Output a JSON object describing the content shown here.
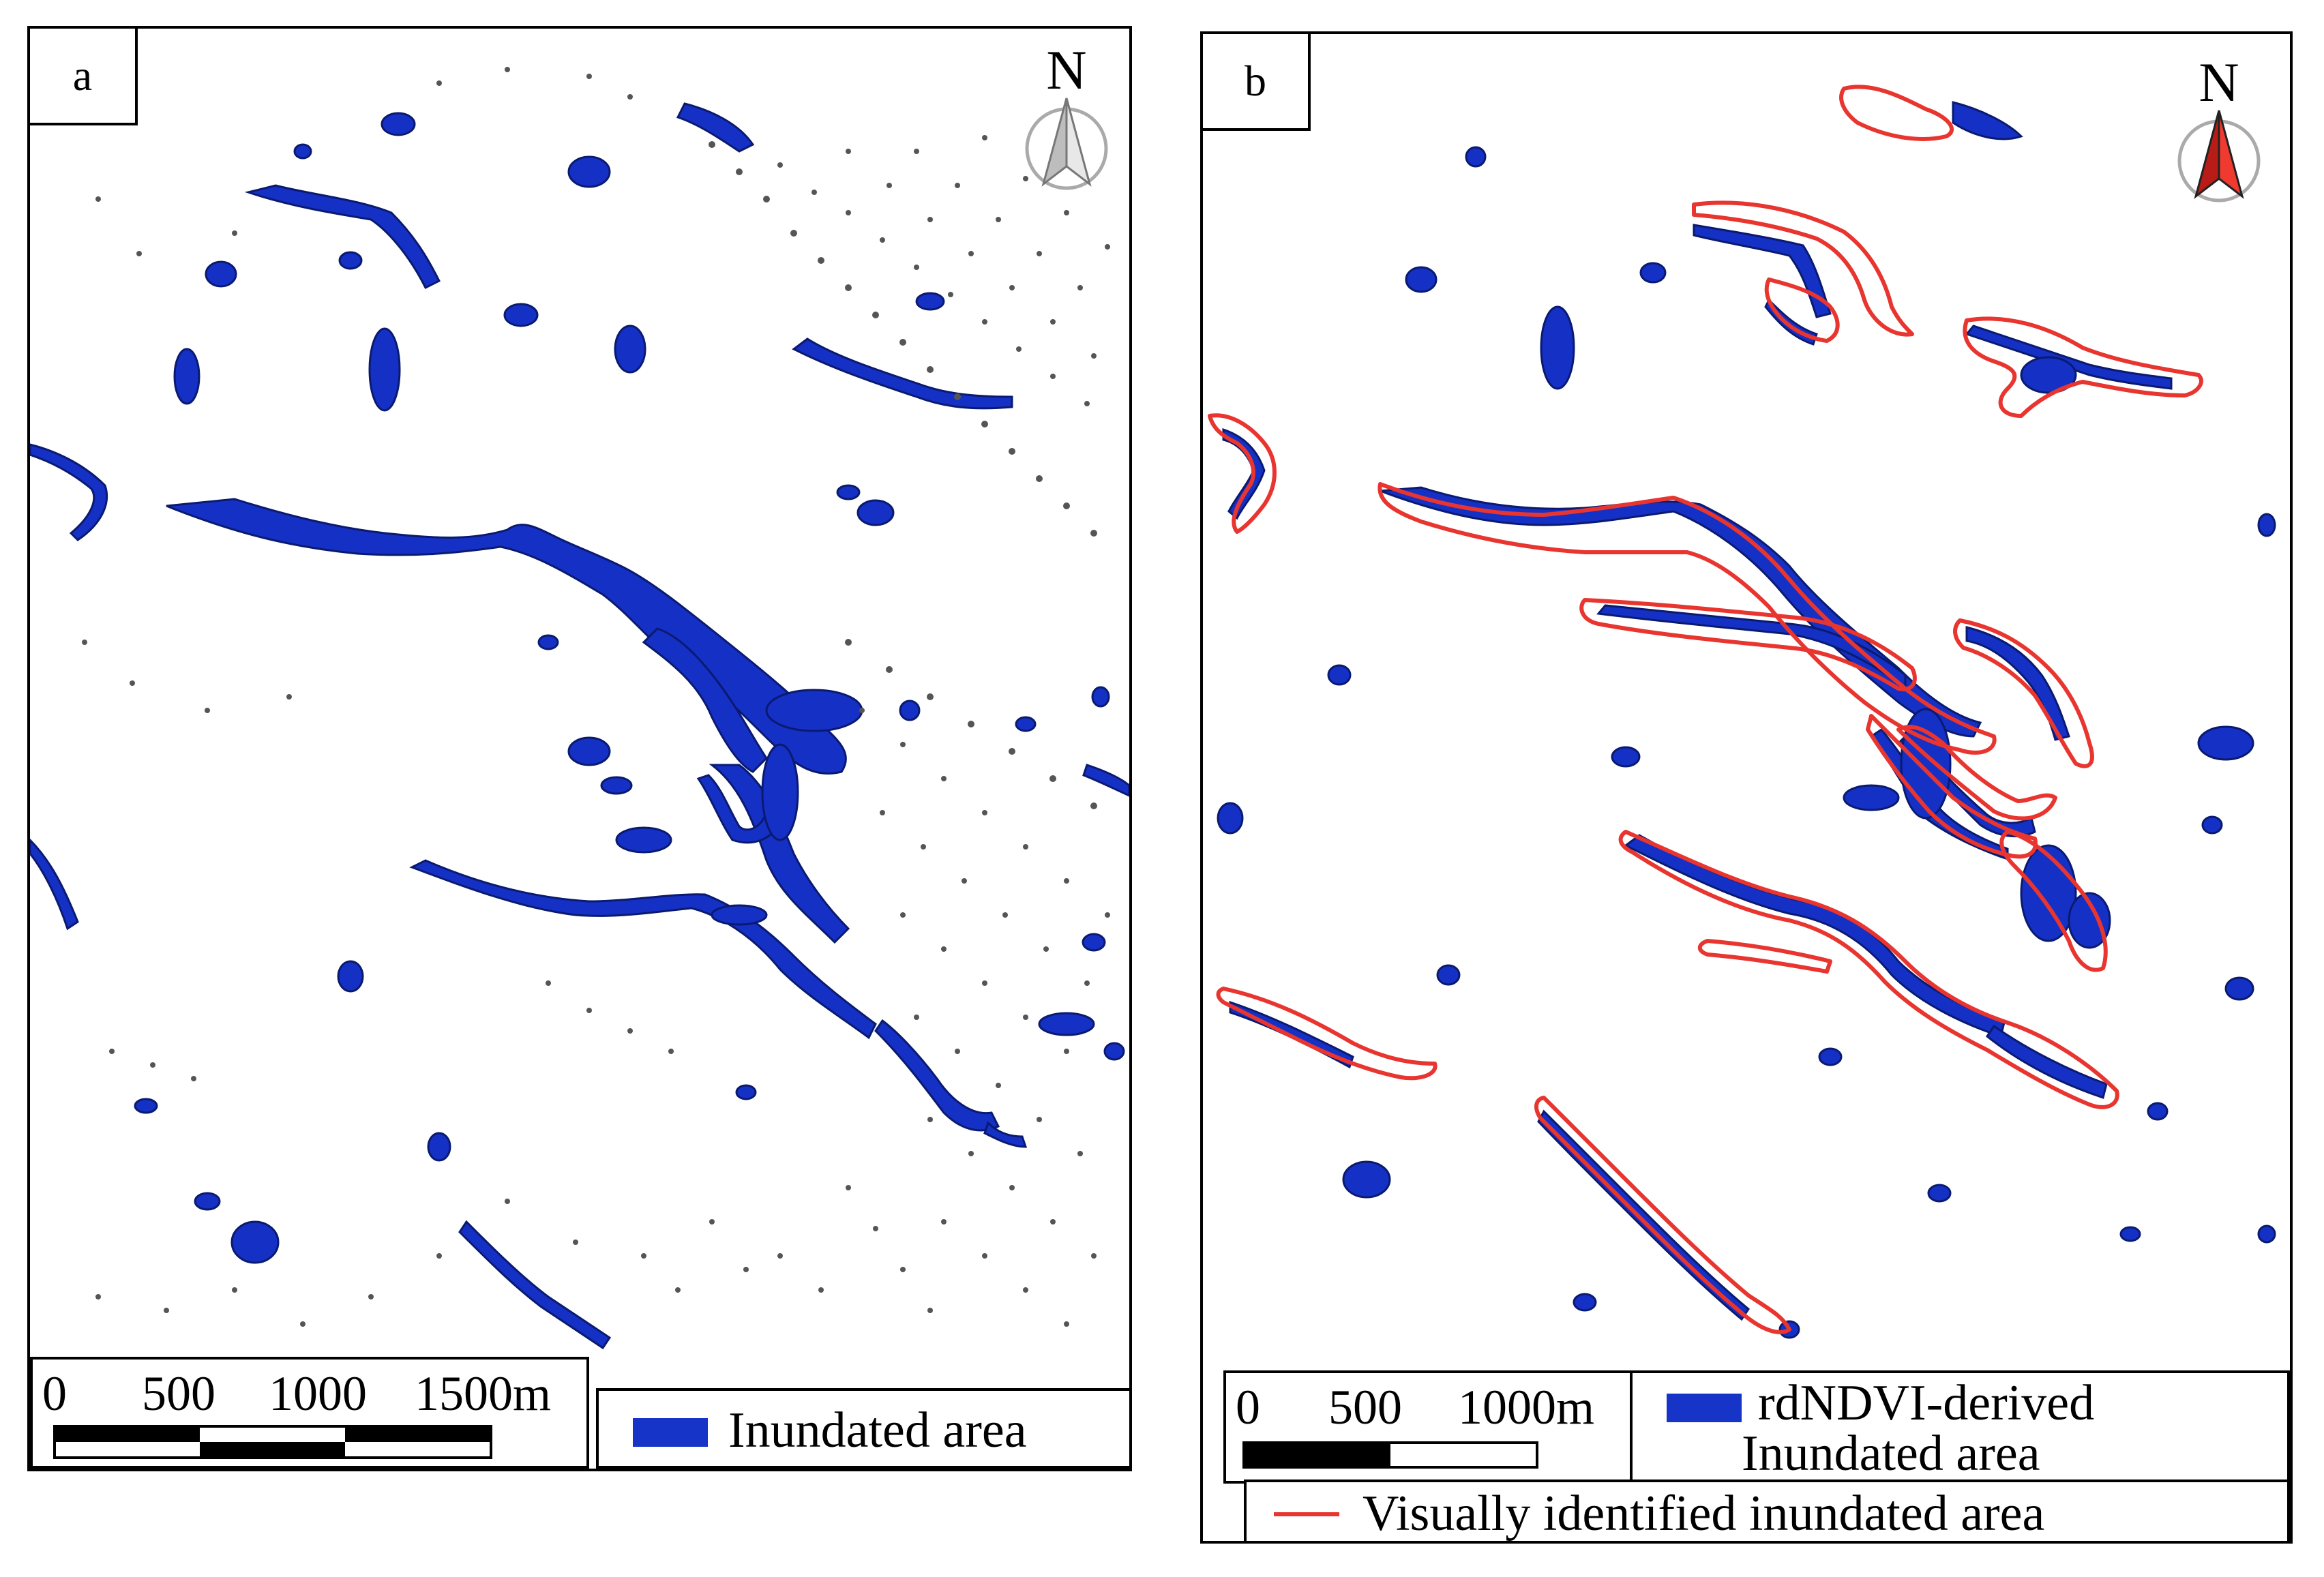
{
  "colors": {
    "inundated_blue": "#1530c4",
    "outline_red": "#e8352f",
    "stipple_gray": "#555555",
    "north_arrow_a": "#c8c8c8",
    "north_arrow_b": "#e02a22"
  },
  "panel_a": {
    "label": "a",
    "north_label": "N",
    "north_icon": "north-arrow-gray",
    "scale_labels": [
      "0",
      "500",
      "1000",
      "1500m"
    ],
    "legend_label": "Inundated area"
  },
  "panel_b": {
    "label": "b",
    "north_label": "N",
    "north_icon": "north-arrow-red",
    "scale_labels": [
      "0",
      "500",
      "1000m"
    ],
    "legend_blue_line1": "rdNDVI-derived",
    "legend_blue_line2": "Inundated area",
    "legend_red_label": "Visually identified inundated area"
  }
}
